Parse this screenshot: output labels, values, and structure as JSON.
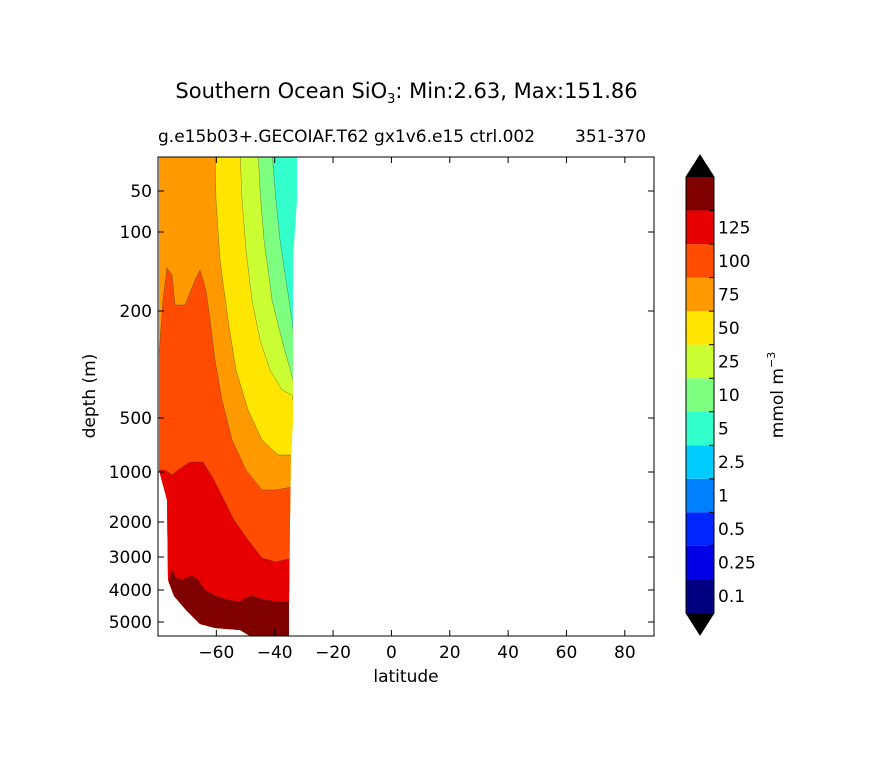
{
  "chart_data": {
    "type": "contour",
    "title_main": "Southern Ocean SiO",
    "title_sub": "3",
    "title_rest": ": Min:2.63, Max:151.86",
    "subtitle_left": "g.e15b03+.GECOIAF.T62 gx1v6.e15 ctrl.002",
    "subtitle_right": "351-370",
    "xlabel": "latitude",
    "ylabel": "depth (m)",
    "xlim": [
      -80,
      90
    ],
    "x_ticks": [
      -60,
      -40,
      -20,
      0,
      20,
      40,
      60,
      80
    ],
    "x_tick_labels": [
      "−60",
      "−40",
      "−20",
      "0",
      "20",
      "40",
      "60",
      "80"
    ],
    "y_scale": "log",
    "ylim_depth": [
      5500,
      20
    ],
    "y_ticks": [
      50,
      100,
      200,
      500,
      1000,
      2000,
      3000,
      4000,
      5000
    ],
    "y_tick_labels": [
      "50",
      "100",
      "200",
      "500",
      "1000",
      "2000",
      "3000",
      "4000",
      "5000"
    ],
    "data_extent_lat": [
      -78,
      -32
    ],
    "colorbar": {
      "label": "mmol m",
      "label_exp": "−3",
      "extend": "both",
      "levels": [
        "0.1",
        "0.25",
        "0.5",
        "1",
        "2.5",
        "5",
        "10",
        "25",
        "50",
        "75",
        "100",
        "125"
      ],
      "colors": [
        "#000080",
        "#0000e6",
        "#0026ff",
        "#007fff",
        "#00ccff",
        "#33ffcc",
        "#7fff7f",
        "#ccff33",
        "#ffe600",
        "#ff9900",
        "#ff4c00",
        "#e60000",
        "#800000"
      ],
      "over_color": "#000000",
      "under_color": "#000000"
    },
    "contour_bands": [
      {
        "range": ">125",
        "color": "#800000"
      },
      {
        "range": "100-125",
        "color": "#e60000"
      },
      {
        "range": "75-100",
        "color": "#ff4c00"
      },
      {
        "range": "50-75",
        "color": "#ff9900"
      },
      {
        "range": "25-50",
        "color": "#ffe600"
      },
      {
        "range": "10-25",
        "color": "#ccff33"
      },
      {
        "range": "5-10",
        "color": "#7fff7f"
      },
      {
        "range": "2.5-5",
        "color": "#33ffcc"
      }
    ]
  }
}
